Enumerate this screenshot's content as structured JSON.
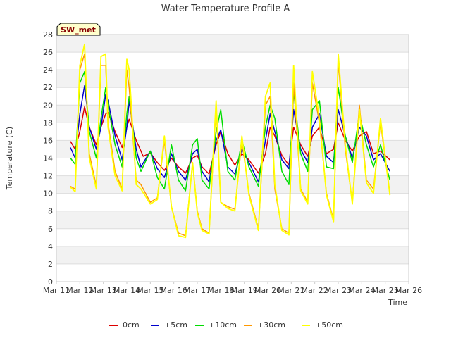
{
  "chart_data": {
    "type": "line",
    "title": "Water Temperature Profile A",
    "xlabel": "Time",
    "ylabel": "Temperature (C)",
    "site_label": "SW_met",
    "x_ticks": [
      "Mar 11",
      "Mar 12",
      "Mar 13",
      "Mar 14",
      "Mar 15",
      "Mar 16",
      "Mar 17",
      "Mar 18",
      "Mar 19",
      "Mar 20",
      "Mar 21",
      "Mar 22",
      "Mar 23",
      "Mar 24",
      "Mar 25",
      "Mar 26"
    ],
    "xlim": [
      11,
      26
    ],
    "ylim": [
      0,
      28
    ],
    "y_ticks": [
      0,
      2,
      4,
      6,
      8,
      10,
      12,
      14,
      16,
      18,
      20,
      22,
      24,
      26,
      28
    ],
    "grid": "horizontal bands",
    "legend_position": "bottom",
    "x_unit": "day of March",
    "series": [
      {
        "name": "0cm",
        "color": "#dd0000",
        "x": [
          11.6,
          11.8,
          12.0,
          12.2,
          12.4,
          12.7,
          12.9,
          13.1,
          13.2,
          13.5,
          13.8,
          14.0,
          14.1,
          14.4,
          14.7,
          15.0,
          15.3,
          15.6,
          15.9,
          16.2,
          16.5,
          16.8,
          17.0,
          17.2,
          17.5,
          17.8,
          18.0,
          18.3,
          18.6,
          18.9,
          19.2,
          19.6,
          19.9,
          20.1,
          20.3,
          20.6,
          20.9,
          21.1,
          21.4,
          21.7,
          21.9,
          22.2,
          22.5,
          22.8,
          23.0,
          23.3,
          23.6,
          23.9,
          24.2,
          24.5,
          24.8,
          25.2
        ],
        "y": [
          15.9,
          15.0,
          17.0,
          19.8,
          17.5,
          15.5,
          17.5,
          19.0,
          19.2,
          17.0,
          15.2,
          17.5,
          18.4,
          16.0,
          14.2,
          14.6,
          13.5,
          12.6,
          14.0,
          13.0,
          12.3,
          14.0,
          14.3,
          13.0,
          12.2,
          15.5,
          17.0,
          14.5,
          13.2,
          14.5,
          13.8,
          12.3,
          14.5,
          17.5,
          16.5,
          14.3,
          13.2,
          17.5,
          15.5,
          14.2,
          16.5,
          17.5,
          14.5,
          15.0,
          18.0,
          16.0,
          14.8,
          16.5,
          17.0,
          14.5,
          14.8,
          13.8
        ]
      },
      {
        "name": "+5cm",
        "color": "#0000cc",
        "x": [
          11.6,
          11.8,
          12.0,
          12.2,
          12.4,
          12.7,
          12.9,
          13.1,
          13.2,
          13.5,
          13.8,
          14.0,
          14.1,
          14.4,
          14.6,
          15.0,
          15.3,
          15.6,
          15.9,
          16.2,
          16.5,
          16.8,
          17.0,
          17.2,
          17.5,
          17.8,
          18.0,
          18.3,
          18.6,
          18.9,
          19.2,
          19.6,
          19.9,
          20.1,
          20.3,
          20.6,
          20.9,
          21.1,
          21.4,
          21.7,
          21.9,
          22.2,
          22.5,
          22.8,
          23.0,
          23.3,
          23.6,
          23.9,
          24.2,
          24.5,
          24.8,
          25.2
        ],
        "y": [
          15.2,
          14.0,
          19.0,
          22.2,
          17.5,
          15.0,
          17.5,
          21.2,
          20.5,
          16.5,
          13.8,
          17.5,
          20.5,
          15.0,
          13.0,
          14.8,
          12.8,
          11.8,
          14.5,
          12.5,
          11.5,
          14.5,
          15.0,
          12.5,
          11.3,
          16.0,
          17.2,
          13.0,
          12.2,
          15.0,
          13.5,
          11.3,
          16.0,
          19.0,
          17.0,
          13.8,
          12.8,
          19.5,
          15.0,
          13.5,
          17.5,
          19.0,
          14.2,
          13.5,
          19.5,
          16.5,
          14.0,
          17.5,
          16.5,
          13.8,
          14.5,
          12.5
        ]
      },
      {
        "name": "+10cm",
        "color": "#00dd00",
        "x": [
          11.6,
          11.8,
          12.0,
          12.2,
          12.4,
          12.7,
          12.9,
          13.1,
          13.2,
          13.5,
          13.8,
          14.0,
          14.1,
          14.4,
          14.6,
          15.0,
          15.3,
          15.6,
          15.9,
          16.2,
          16.5,
          16.8,
          17.0,
          17.2,
          17.5,
          17.8,
          18.0,
          18.3,
          18.6,
          18.9,
          19.2,
          19.6,
          19.9,
          20.1,
          20.3,
          20.6,
          20.9,
          21.1,
          21.4,
          21.7,
          21.9,
          22.2,
          22.5,
          22.8,
          23.0,
          23.3,
          23.6,
          23.9,
          24.2,
          24.5,
          24.8,
          25.2
        ],
        "y": [
          14.0,
          13.3,
          22.5,
          23.8,
          17.0,
          14.0,
          18.5,
          22.0,
          20.0,
          15.5,
          13.0,
          19.0,
          21.0,
          14.0,
          12.5,
          14.8,
          11.8,
          10.5,
          15.5,
          11.5,
          10.3,
          15.5,
          16.2,
          11.5,
          10.5,
          17.0,
          19.5,
          12.5,
          11.5,
          16.0,
          13.0,
          10.8,
          17.5,
          20.0,
          18.5,
          12.5,
          11.0,
          21.5,
          14.5,
          12.5,
          19.5,
          20.5,
          13.0,
          12.8,
          22.0,
          16.5,
          13.5,
          19.0,
          15.5,
          13.0,
          15.5,
          11.5
        ]
      },
      {
        "name": "+30cm",
        "color": "#ff9900",
        "x": [
          11.6,
          11.8,
          12.0,
          12.2,
          12.4,
          12.7,
          12.9,
          13.1,
          13.2,
          13.5,
          13.8,
          14.0,
          14.1,
          14.4,
          14.6,
          15.0,
          15.3,
          15.6,
          15.9,
          16.2,
          16.5,
          16.8,
          17.0,
          17.2,
          17.5,
          17.8,
          18.0,
          18.3,
          18.6,
          18.9,
          19.2,
          19.6,
          19.9,
          20.1,
          20.3,
          20.6,
          20.9,
          21.1,
          21.4,
          21.7,
          21.9,
          22.2,
          22.5,
          22.8,
          23.0,
          23.3,
          23.6,
          23.9,
          24.2,
          24.5,
          24.8,
          25.2
        ],
        "y": [
          10.8,
          10.5,
          24.0,
          25.8,
          14.5,
          10.8,
          24.5,
          24.5,
          18.0,
          12.5,
          10.5,
          24.0,
          22.0,
          11.5,
          11.0,
          9.0,
          9.5,
          16.0,
          8.5,
          5.5,
          5.2,
          13.5,
          8.0,
          6.0,
          5.5,
          20.0,
          9.0,
          8.5,
          8.2,
          16.0,
          10.0,
          6.0,
          20.0,
          21.0,
          10.5,
          6.0,
          5.5,
          22.5,
          10.5,
          9.0,
          22.5,
          18.0,
          10.0,
          7.0,
          25.0,
          15.0,
          9.0,
          20.0,
          11.5,
          10.5,
          18.0,
          10.0
        ]
      },
      {
        "name": "+50cm",
        "color": "#ffff00",
        "x": [
          11.6,
          11.8,
          12.0,
          12.2,
          12.4,
          12.7,
          12.9,
          13.1,
          13.2,
          13.5,
          13.8,
          14.0,
          14.1,
          14.4,
          14.6,
          15.0,
          15.3,
          15.6,
          15.9,
          16.2,
          16.5,
          16.8,
          17.0,
          17.2,
          17.5,
          17.8,
          18.0,
          18.3,
          18.6,
          18.9,
          19.2,
          19.6,
          19.9,
          20.1,
          20.3,
          20.6,
          20.9,
          21.1,
          21.4,
          21.7,
          21.9,
          22.2,
          22.5,
          22.8,
          23.0,
          23.3,
          23.6,
          23.9,
          24.2,
          24.5,
          24.8,
          25.2
        ],
        "y": [
          10.7,
          10.2,
          24.5,
          26.9,
          14.0,
          10.5,
          25.5,
          25.8,
          17.5,
          12.0,
          10.3,
          25.2,
          24.0,
          11.0,
          10.5,
          8.8,
          9.3,
          16.5,
          8.5,
          5.2,
          5.0,
          13.5,
          7.8,
          5.8,
          5.4,
          20.5,
          9.0,
          8.3,
          8.0,
          16.5,
          9.8,
          5.8,
          21.0,
          22.5,
          11.0,
          5.8,
          5.3,
          24.5,
          10.3,
          8.8,
          23.8,
          18.5,
          9.8,
          6.8,
          25.8,
          15.5,
          8.8,
          19.5,
          11.2,
          10.0,
          18.5,
          9.8
        ]
      }
    ]
  }
}
